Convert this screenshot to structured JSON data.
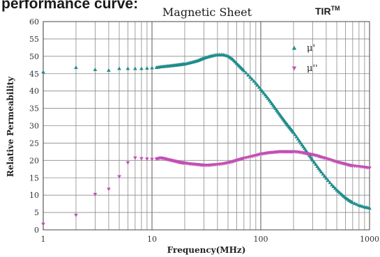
{
  "header": {
    "cropped_text": "performance curve:",
    "brand": "TIR",
    "brand_sup": "TM"
  },
  "chart_data": {
    "type": "scatter",
    "title": "Magnetic Sheet",
    "xlabel": "Frequency(MHz)",
    "ylabel": "Relative Permeability",
    "xscale": "log",
    "xlim": [
      1,
      1000
    ],
    "ylim": [
      0,
      60
    ],
    "x_ticks": [
      "1",
      "10",
      "100",
      "1000"
    ],
    "y_ticks": [
      "0",
      "5",
      "10",
      "15",
      "20",
      "25",
      "30",
      "35",
      "40",
      "45",
      "50",
      "55",
      "60"
    ],
    "grid": true,
    "legend_position": "top-right",
    "colors": {
      "mu_prime": "#1f8c8c",
      "mu_double_prime": "#c24fb4"
    },
    "series": [
      {
        "name": "μ'",
        "marker": "triangle-up",
        "x": [
          1,
          2,
          3,
          4,
          5,
          6,
          7,
          8,
          9,
          10,
          11,
          12,
          13,
          14,
          15,
          16,
          17,
          18,
          19,
          20,
          22,
          24,
          26,
          28,
          30,
          33,
          36,
          40,
          45,
          50,
          55,
          60,
          65,
          70,
          80,
          90,
          100,
          110,
          120,
          130,
          140,
          150,
          160,
          170,
          180,
          190,
          200,
          220,
          240,
          260,
          280,
          300,
          330,
          360,
          400,
          450,
          500,
          550,
          600,
          650,
          700,
          800,
          900,
          1000
        ],
        "y": [
          45.5,
          46.8,
          46.2,
          46,
          46.5,
          46.5,
          46.5,
          46.5,
          46.6,
          46.7,
          46.8,
          47,
          47.1,
          47.2,
          47.3,
          47.4,
          47.5,
          47.6,
          47.7,
          47.8,
          48.1,
          48.4,
          48.7,
          49.1,
          49.5,
          49.9,
          50.2,
          50.5,
          50.5,
          50.1,
          49.2,
          48,
          46.9,
          45.9,
          44,
          42.3,
          40.5,
          38.9,
          37.4,
          35.9,
          34.5,
          33.2,
          32,
          30.9,
          29.9,
          29,
          28.1,
          26.2,
          24.5,
          22.9,
          21.5,
          20.1,
          18.3,
          16.7,
          14.9,
          13,
          11.5,
          10.3,
          9.3,
          8.5,
          7.9,
          7.1,
          6.6,
          6.3
        ]
      },
      {
        "name": "μ''",
        "marker": "triangle-down",
        "x": [
          1,
          2,
          3,
          4,
          5,
          6,
          7,
          8,
          9,
          10,
          11,
          12,
          13,
          14,
          15,
          16,
          17,
          18,
          19,
          20,
          22,
          24,
          26,
          28,
          30,
          33,
          36,
          40,
          45,
          50,
          55,
          60,
          65,
          70,
          80,
          90,
          100,
          110,
          120,
          130,
          140,
          150,
          160,
          170,
          180,
          190,
          200,
          220,
          240,
          260,
          280,
          300,
          330,
          360,
          400,
          450,
          500,
          550,
          600,
          650,
          700,
          800,
          900,
          1000
        ],
        "y": [
          1.6,
          4.2,
          10.2,
          11.7,
          15.3,
          19.3,
          20.7,
          20.5,
          20.4,
          20.3,
          20.4,
          20.7,
          20.5,
          20.2,
          20,
          19.8,
          19.6,
          19.4,
          19.3,
          19.2,
          19,
          18.9,
          18.8,
          18.7,
          18.6,
          18.6,
          18.7,
          18.8,
          19,
          19.3,
          19.6,
          20,
          20.3,
          20.6,
          21,
          21.4,
          21.8,
          22,
          22.2,
          22.3,
          22.4,
          22.5,
          22.5,
          22.5,
          22.5,
          22.5,
          22.5,
          22.4,
          22.2,
          22,
          21.8,
          21.6,
          21.3,
          20.9,
          20.5,
          20,
          19.5,
          19.2,
          18.9,
          18.6,
          18.4,
          18.2,
          18,
          17.8
        ]
      }
    ]
  }
}
